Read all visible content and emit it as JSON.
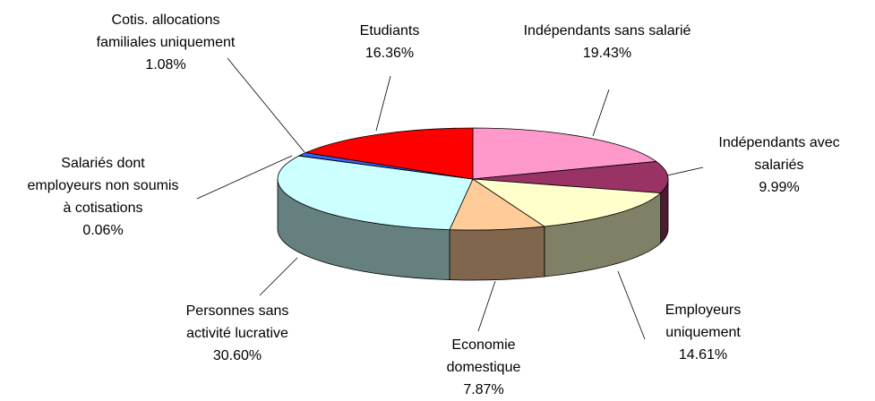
{
  "chart_data": {
    "type": "pie3d",
    "categories": [
      "Indépendants sans salarié",
      "Indépendants avec salariés",
      "Employeurs uniquement",
      "Economie domestique",
      "Personnes sans activité lucrative",
      "Salariés dont employeurs non soumis à cotisations",
      "Cotis. allocations familiales uniquement",
      "Etudiants"
    ],
    "values": [
      19.43,
      9.99,
      14.61,
      7.87,
      30.6,
      0.06,
      1.08,
      16.36
    ],
    "value_labels": [
      "19.43%",
      "9.99%",
      "14.61%",
      "7.87%",
      "30.60%",
      "0.06%",
      "1.08%",
      "16.36%"
    ],
    "colors": [
      "#ff99cc",
      "#993366",
      "#ffffcc",
      "#ffcc99",
      "#ccffff",
      "#333399",
      "#3366ff",
      "#ff0000"
    ]
  }
}
